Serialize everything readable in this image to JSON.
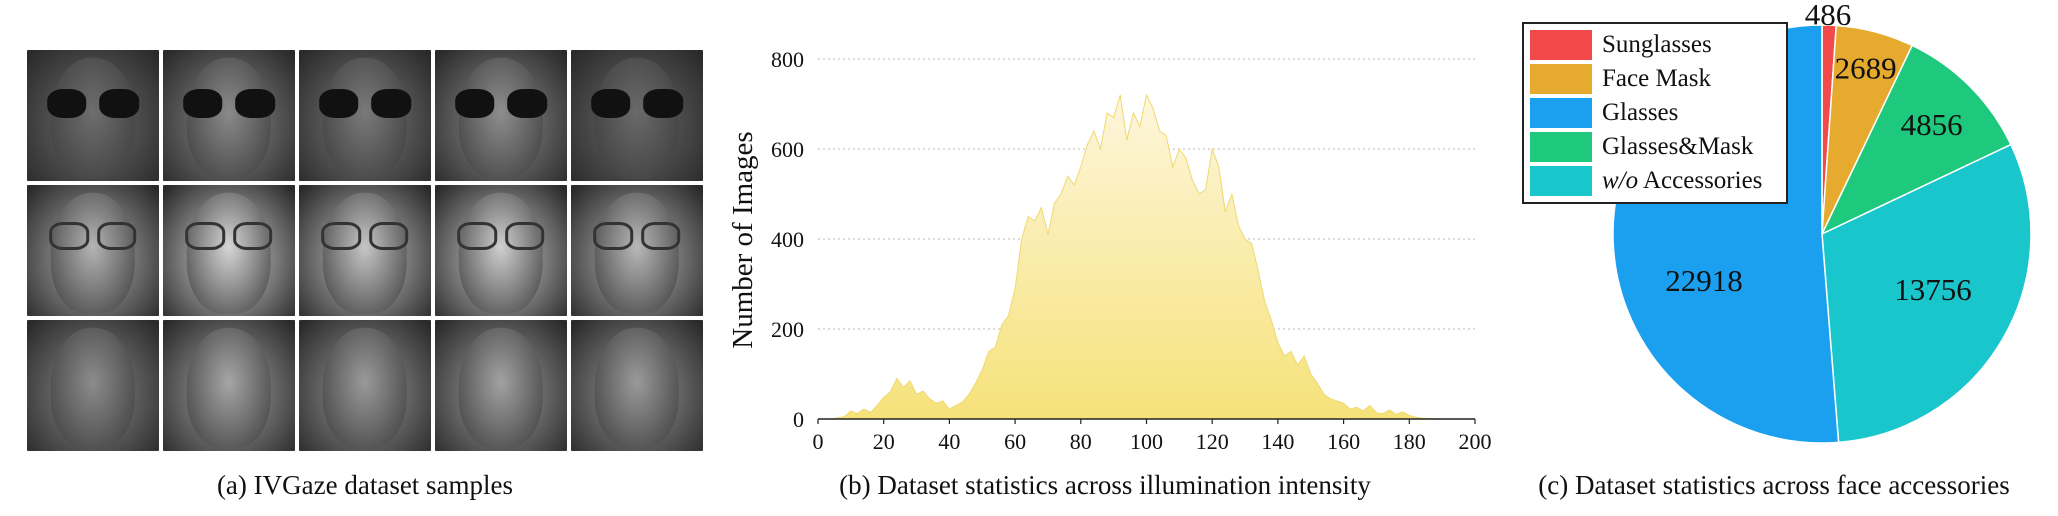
{
  "panels": {
    "a": {
      "caption": "(a) IVGaze dataset samples",
      "rows": [
        {
          "accessory": "sunglasses",
          "tones": [
            "#6e6e6e",
            "#8a8a8a",
            "#7a7a7a",
            "#8e8e8e",
            "#6a6a6a"
          ]
        },
        {
          "accessory": "glasses",
          "tones": [
            "#b4b4b4",
            "#d6d6d6",
            "#c6c6c6",
            "#cfcfcf",
            "#b8b8b8"
          ]
        },
        {
          "accessory": "none",
          "tones": [
            "#8c8c8c",
            "#a6a6a6",
            "#9a9a9a",
            "#a2a2a2",
            "#9a9a9a"
          ]
        }
      ]
    },
    "b": {
      "caption": "(b) Dataset statistics across illumination intensity"
    },
    "c": {
      "caption": "(c) Dataset statistics across face accessories"
    }
  },
  "chart_data": [
    {
      "type": "area",
      "ylabel": "Number of Images",
      "xlabel": "",
      "xlim": [
        0,
        200
      ],
      "ylim": [
        0,
        800
      ],
      "xticks": [
        0,
        20,
        40,
        60,
        80,
        100,
        120,
        140,
        160,
        180,
        200
      ],
      "yticks": [
        0,
        200,
        400,
        600,
        800
      ],
      "grid": "horizontal dotted",
      "fill_color_top": "#fdf6dc",
      "fill_color_bottom": "#f6e27a",
      "x": [
        0,
        4,
        8,
        10,
        12,
        14,
        16,
        18,
        20,
        22,
        24,
        26,
        28,
        30,
        32,
        34,
        36,
        38,
        40,
        42,
        44,
        46,
        48,
        50,
        52,
        54,
        56,
        58,
        60,
        62,
        64,
        66,
        68,
        70,
        72,
        74,
        76,
        78,
        80,
        82,
        84,
        86,
        88,
        90,
        92,
        94,
        96,
        98,
        100,
        102,
        104,
        106,
        108,
        110,
        112,
        114,
        116,
        118,
        120,
        122,
        124,
        126,
        128,
        130,
        132,
        134,
        136,
        138,
        140,
        142,
        144,
        146,
        148,
        150,
        152,
        154,
        156,
        158,
        160,
        162,
        164,
        166,
        168,
        170,
        172,
        174,
        176,
        178,
        180,
        182,
        184,
        190,
        200
      ],
      "values": [
        0,
        0,
        5,
        18,
        12,
        22,
        15,
        30,
        48,
        60,
        90,
        70,
        85,
        55,
        62,
        45,
        35,
        40,
        22,
        30,
        38,
        55,
        80,
        110,
        150,
        160,
        210,
        230,
        290,
        400,
        450,
        440,
        470,
        410,
        480,
        500,
        540,
        520,
        560,
        610,
        640,
        600,
        680,
        670,
        720,
        620,
        680,
        650,
        720,
        690,
        640,
        630,
        560,
        600,
        580,
        530,
        500,
        510,
        600,
        560,
        460,
        500,
        430,
        400,
        390,
        330,
        260,
        220,
        170,
        140,
        150,
        120,
        140,
        100,
        80,
        55,
        45,
        40,
        35,
        22,
        26,
        18,
        30,
        14,
        12,
        20,
        10,
        16,
        8,
        4,
        2,
        0,
        0
      ]
    },
    {
      "type": "pie",
      "categories": [
        "Sunglasses",
        "Face Mask",
        "Glasses",
        "Glasses&Mask",
        "w/o Accessories"
      ],
      "values": [
        486,
        2689,
        22918,
        4856,
        13756
      ],
      "colors": [
        "#f24a4a",
        "#e6aa2e",
        "#1ba0f0",
        "#1ec97e",
        "#18c6cc"
      ],
      "legend": "top-left overlapping pie"
    }
  ]
}
